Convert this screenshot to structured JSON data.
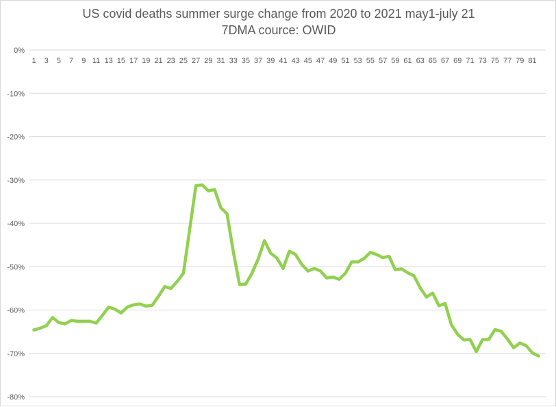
{
  "chart_data": {
    "type": "line",
    "title": "US covid deaths summer surge change from 2020 to 2021 may1-july 21",
    "subtitle": "7DMA cource: OWID",
    "xlabel": "",
    "ylabel": "",
    "ylim": [
      -80,
      0
    ],
    "yticks": [
      0,
      -10,
      -20,
      -30,
      -40,
      -50,
      -60,
      -70,
      -80
    ],
    "ytick_labels": [
      "0%",
      "-10%",
      "-20%",
      "-30%",
      "-40%",
      "-50%",
      "-60%",
      "-70%",
      "-80%"
    ],
    "xlim": [
      1,
      82
    ],
    "xtick_labels": [
      "1",
      "3",
      "5",
      "7",
      "9",
      "11",
      "13",
      "15",
      "17",
      "19",
      "21",
      "23",
      "25",
      "27",
      "29",
      "31",
      "33",
      "35",
      "37",
      "39",
      "41",
      "43",
      "45",
      "47",
      "49",
      "51",
      "53",
      "55",
      "57",
      "59",
      "61",
      "63",
      "65",
      "67",
      "69",
      "71",
      "73",
      "75",
      "77",
      "79",
      "81"
    ],
    "grid": true,
    "line_color": "#92d050",
    "series": [
      {
        "name": "change",
        "x": [
          1,
          2,
          3,
          4,
          5,
          6,
          7,
          8,
          9,
          10,
          11,
          12,
          13,
          14,
          15,
          16,
          17,
          18,
          19,
          20,
          21,
          22,
          23,
          24,
          25,
          26,
          27,
          28,
          29,
          30,
          31,
          32,
          33,
          34,
          35,
          36,
          37,
          38,
          39,
          40,
          41,
          42,
          43,
          44,
          45,
          46,
          47,
          48,
          49,
          50,
          51,
          52,
          53,
          54,
          55,
          56,
          57,
          58,
          59,
          60,
          61,
          62,
          63,
          64,
          65,
          66,
          67,
          68,
          69,
          70,
          71,
          72,
          73,
          74,
          75,
          76,
          77,
          78,
          79,
          80,
          81,
          82
        ],
        "values": [
          -64.6,
          -64.2,
          -63.6,
          -61.7,
          -62.9,
          -63.2,
          -62.4,
          -62.6,
          -62.6,
          -62.6,
          -63.0,
          -61.2,
          -59.3,
          -59.8,
          -60.7,
          -59.3,
          -58.8,
          -58.6,
          -59.1,
          -58.9,
          -56.8,
          -54.6,
          -55.0,
          -53.4,
          -51.5,
          -41.4,
          -31.3,
          -31.1,
          -32.5,
          -32.2,
          -36.4,
          -37.8,
          -46.5,
          -54.1,
          -54.0,
          -51.5,
          -48.2,
          -44.0,
          -46.9,
          -48.0,
          -50.4,
          -46.4,
          -47.2,
          -49.5,
          -51.0,
          -50.4,
          -51.0,
          -52.6,
          -52.4,
          -52.9,
          -51.5,
          -48.9,
          -48.9,
          -48.1,
          -46.7,
          -47.2,
          -47.9,
          -47.6,
          -50.7,
          -50.5,
          -51.4,
          -52.1,
          -54.9,
          -57.0,
          -56.1,
          -59.0,
          -58.5,
          -63.4,
          -65.6,
          -66.9,
          -66.8,
          -69.6,
          -66.8,
          -66.8,
          -64.5,
          -64.9,
          -66.7,
          -68.7,
          -67.6,
          -68.2,
          -69.9,
          -70.6
        ]
      }
    ]
  }
}
